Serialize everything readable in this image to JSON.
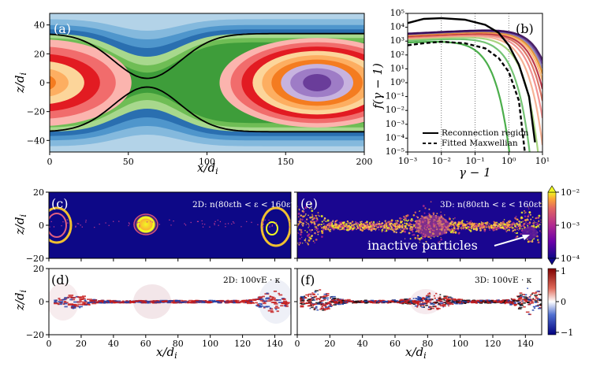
{
  "colors": {
    "contour": [
      "#b3d3e8",
      "#84b9dd",
      "#4f96cc",
      "#2a6fb0",
      "#a8d88d",
      "#6fbd55",
      "#3e9d3a",
      "#fbb4ae",
      "#f16c6c",
      "#e21b22",
      "#fcd59a",
      "#fdae61",
      "#f47c20",
      "#c7b3df",
      "#9e7cc6",
      "#6a3d9a"
    ],
    "panel_b_curves": [
      "#2ca02c",
      "#5cb85c",
      "#9acd6a",
      "#f4a582",
      "#f08080",
      "#d6604d",
      "#b2182b",
      "#fdae61",
      "#e08214",
      "#8073ac",
      "#542788",
      "#2d004b"
    ]
  },
  "chart_data": [
    {
      "panel": "(a)",
      "type": "heatmap",
      "xlabel": "x/d_i",
      "ylabel": "z/d_i",
      "xlim": [
        0,
        200
      ],
      "ylim": [
        -48,
        48
      ],
      "xticks": [
        "0",
        "50",
        "100",
        "150",
        "200"
      ],
      "yticks": [
        "−40",
        "−20",
        "0",
        "20",
        "40"
      ],
      "separatrix_x_point": 62,
      "o_point_x": 170
    },
    {
      "panel": "(b)",
      "type": "line",
      "xlabel": "γ − 1",
      "ylabel": "f(γ − 1)",
      "xscale": "log",
      "yscale": "log",
      "xlim": [
        0.001,
        10
      ],
      "ylim": [
        1e-05,
        100000
      ],
      "xticks": [
        "10⁻³",
        "10⁻²",
        "10⁻¹",
        "10⁰",
        "10¹"
      ],
      "yticks": [
        "10⁵",
        "10⁴",
        "10³",
        "10²",
        "10¹",
        "10⁰",
        "10⁻¹",
        "10⁻²",
        "10⁻³",
        "10⁻⁴",
        "10⁻⁵"
      ],
      "vlines": [
        0.01,
        0.1,
        1.0
      ],
      "series": [
        {
          "name": "Reconnection region",
          "style": "solid",
          "x": [
            0.001,
            0.003,
            0.01,
            0.05,
            0.2,
            0.5,
            1,
            2,
            4,
            6
          ],
          "y": [
            20000,
            40000,
            45000,
            35000,
            15000,
            4000,
            500,
            20,
            0.1,
            5e-05
          ]
        },
        {
          "name": "Fitted Maxwellian",
          "style": "dashed",
          "x": [
            0.001,
            0.003,
            0.01,
            0.05,
            0.2,
            0.5,
            1,
            2,
            3
          ],
          "y": [
            500,
            700,
            900,
            700,
            300,
            60,
            6,
            0.05,
            1e-05
          ]
        }
      ],
      "legend": [
        "Reconnection region",
        "Fitted Maxwellian"
      ]
    },
    {
      "panel": "(c)",
      "type": "heatmap",
      "annotation": "2D: n(80ε_th < ε < 160ε_th)",
      "ylabel": "z/d_i",
      "ylim": [
        -20,
        20
      ],
      "yticks": [
        "20",
        "0",
        "−20"
      ]
    },
    {
      "panel": "(d)",
      "type": "heatmap",
      "annotation": "2D: 100v_E · κ",
      "xlabel": "x/d_i",
      "ylabel": "z/d_i",
      "xlim": [
        0,
        150
      ],
      "xticks": [
        "0",
        "20",
        "40",
        "60",
        "80",
        "100",
        "120",
        "140"
      ],
      "yticks": [
        "20",
        "0",
        "−20"
      ]
    },
    {
      "panel": "(e)",
      "type": "heatmap",
      "annotation": "3D: n(80ε_th < ε < 160ε_th)",
      "callout": "inactive particles"
    },
    {
      "panel": "(f)",
      "type": "heatmap",
      "annotation": "3D: 100v_E · κ",
      "xlabel": "x/d_i",
      "xlim": [
        0,
        150
      ],
      "xticks": [
        "0",
        "20",
        "40",
        "60",
        "80",
        "100",
        "120",
        "140"
      ]
    }
  ],
  "colorbars": {
    "density": {
      "ticks": [
        "10⁻²",
        "10⁻³",
        "10⁻⁴"
      ],
      "range": [
        0.0001,
        0.01
      ]
    },
    "compression": {
      "ticks": [
        "1",
        "0",
        "−1"
      ],
      "range": [
        -1,
        1
      ]
    }
  },
  "labels": {
    "a": "(a)",
    "b": "(b)",
    "c": "(c)",
    "d": "(d)",
    "e": "(e)",
    "f": "(f)",
    "xdi": "x/d",
    "zdi": "z/d",
    "gamma": "γ − 1",
    "fgamma": "f(γ − 1)",
    "ann_c": "2D: n(80ε",
    "ann_c_full": "2D: n(80εth < ε < 160εth)",
    "ann_d": "2D: 100vE · κ",
    "ann_e": "3D: n(80εth < ε < 160εth)",
    "ann_f": "3D: 100vE · κ",
    "inactive": "inactive particles",
    "leg1": "Reconnection region",
    "leg2": "Fitted Maxwellian"
  }
}
